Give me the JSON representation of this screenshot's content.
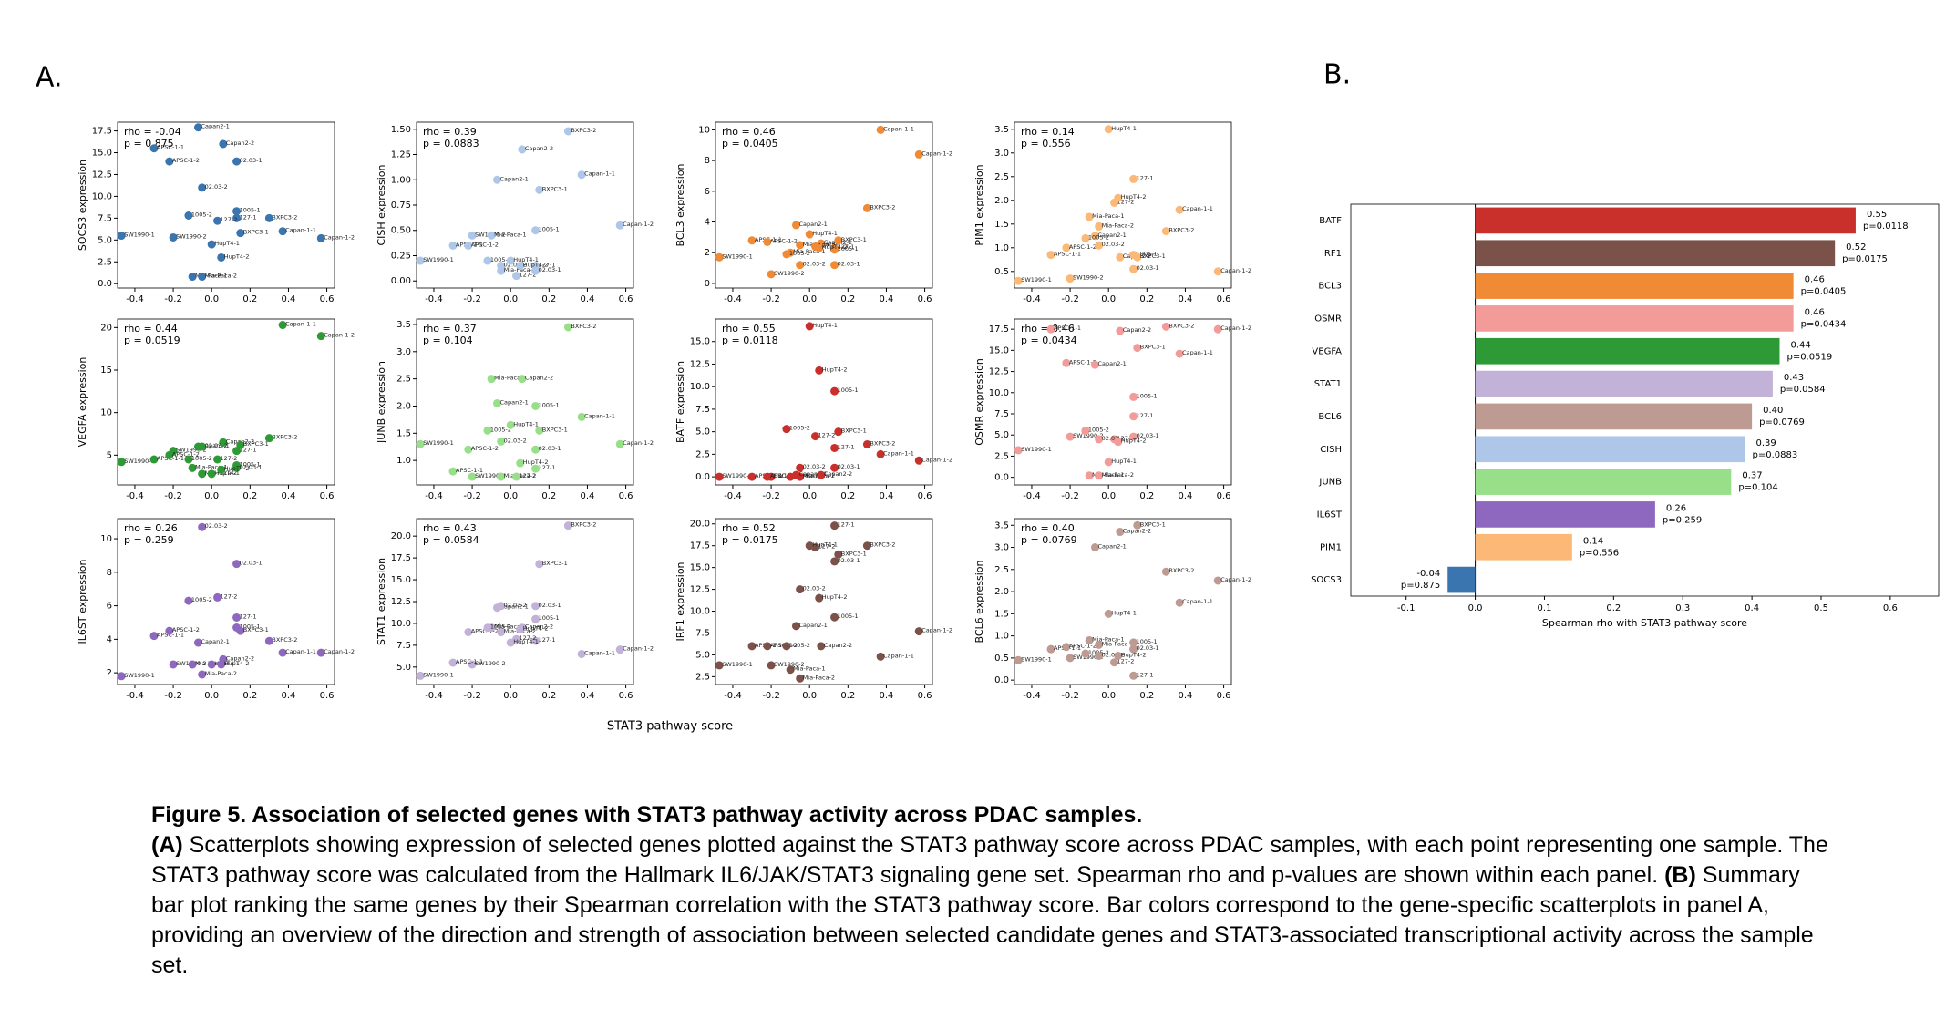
{
  "panel_labels": [
    "A.",
    "B."
  ],
  "chart_data": [
    {
      "type": "scatter",
      "xlabel": "STAT3 pathway score",
      "xlim": [
        -0.49,
        0.64
      ],
      "xticks": [
        -0.4,
        -0.2,
        {
          "value": 0,
          "label": "0.0"
        },
        0.2,
        0.4,
        0.6
      ],
      "x": [
        -0.47,
        -0.2,
        -0.3,
        -0.22,
        -0.1,
        -0.05,
        -0.07,
        0.06,
        0.13,
        -0.12,
        0.13,
        0.03,
        0.13,
        -0.05,
        0.0,
        0.05,
        0.15,
        0.3,
        0.37,
        0.57
      ],
      "point_labels": [
        "SW1990-1",
        "SW1990-2",
        "APSC-1-1",
        "APSC-1-2",
        "Mia-Paca-1",
        "Mia-Paca-2",
        "Capan2-1",
        "Capan2-2",
        "1005-1",
        "1005-2",
        "127-1",
        "127-2",
        "02.03-1",
        "02.03-2",
        "HupT4-1",
        "HupT4-2",
        "BXPC3-1",
        "BXPC3-2",
        "Capan-1-1",
        "Capan-1-2"
      ],
      "panels": [
        {
          "ylabel": "SOCS3 expression",
          "color": "#3a75b0",
          "annotation": [
            "rho = -0.04",
            "p = 0.875"
          ],
          "ylim": [
            -0.5,
            18.5
          ],
          "yticks": [
            {
              "value": 0,
              "label": "0.0"
            },
            2.5,
            {
              "value": 5,
              "label": "5.0"
            },
            7.5,
            {
              "value": 10,
              "label": "10.0"
            },
            12.5,
            {
              "value": 15,
              "label": "15.0"
            },
            17.5
          ],
          "values": [
            5.5,
            5.3,
            15.5,
            14,
            0.8,
            0.8,
            17.9,
            16,
            8.3,
            7.8,
            7.5,
            7.2,
            14,
            11,
            4.5,
            3,
            5.8,
            7.5,
            6,
            5.2
          ]
        },
        {
          "ylabel": "CISH expression",
          "color": "#aec7e8",
          "annotation": [
            "rho = 0.39",
            "p = 0.0883"
          ],
          "ylim": [
            -0.07,
            1.57
          ],
          "yticks": [
            {
              "value": 0,
              "label": "0.00"
            },
            0.25,
            {
              "value": 0.5,
              "label": "0.50"
            },
            0.75,
            {
              "value": 1,
              "label": "1.00"
            },
            1.25,
            {
              "value": 1.5,
              "label": "1.50"
            }
          ],
          "values": [
            0.2,
            0.45,
            0.35,
            0.35,
            0.45,
            0.1,
            1.0,
            1.3,
            0.5,
            0.2,
            0.15,
            0.05,
            0.1,
            0.15,
            0.2,
            0.15,
            0.9,
            1.48,
            1.05,
            0.55
          ]
        },
        {
          "ylabel": "BCL3 expression",
          "color": "#f08a35",
          "annotation": [
            "rho = 0.46",
            "p = 0.0405"
          ],
          "ylim": [
            -0.3,
            10.5
          ],
          "yticks": [
            0,
            2,
            4,
            6,
            8,
            10
          ],
          "values": [
            1.7,
            0.6,
            2.8,
            2.7,
            2.0,
            2.5,
            3.8,
            2.6,
            2.2,
            1.9,
            2.3,
            2.4,
            1.2,
            1.2,
            3.2,
            2.3,
            2.8,
            4.9,
            10,
            8.4
          ]
        },
        {
          "ylabel": "PIM1 expression",
          "color": "#fbb877",
          "annotation": [
            "rho = 0.14",
            "p = 0.556"
          ],
          "ylim": [
            0.15,
            3.65
          ],
          "yticks": [
            0.5,
            {
              "value": 1,
              "label": "1.0"
            },
            1.5,
            {
              "value": 2,
              "label": "2.0"
            },
            2.5,
            {
              "value": 3,
              "label": "3.0"
            },
            3.5
          ],
          "values": [
            0.3,
            0.35,
            0.85,
            1.0,
            1.65,
            1.45,
            1.25,
            0.8,
            0.85,
            1.2,
            2.45,
            1.95,
            0.55,
            1.05,
            3.5,
            2.05,
            0.8,
            1.35,
            1.8,
            0.5
          ]
        },
        {
          "ylabel": "VEGFA expression",
          "color": "#2e9a35",
          "annotation": [
            "rho = 0.44",
            "p = 0.0519"
          ],
          "ylim": [
            1.5,
            21
          ],
          "yticks": [
            5,
            10,
            15,
            20
          ],
          "values": [
            4.2,
            5.5,
            4.5,
            5,
            3.5,
            2.8,
            6,
            6.5,
            3.8,
            4.5,
            5.5,
            4.5,
            3.5,
            6,
            2.8,
            3.3,
            6.2,
            7.0,
            20.3,
            19
          ]
        },
        {
          "ylabel": "JUNB expression",
          "color": "#98df8a",
          "annotation": [
            "rho = 0.37",
            "p = 0.104"
          ],
          "ylim": [
            0.55,
            3.6
          ],
          "yticks": [
            {
              "value": 1,
              "label": "1.0"
            },
            1.5,
            {
              "value": 2,
              "label": "2.0"
            },
            2.5,
            {
              "value": 3,
              "label": "3.0"
            },
            3.5
          ],
          "values": [
            1.3,
            0.7,
            0.8,
            1.2,
            2.5,
            0.7,
            2.05,
            2.5,
            2.0,
            1.55,
            0.85,
            0.7,
            1.2,
            1.35,
            1.65,
            0.95,
            1.55,
            3.45,
            1.8,
            1.3
          ]
        },
        {
          "ylabel": "BATF expression",
          "color": "#c9302c",
          "annotation": [
            "rho = 0.55",
            "p = 0.0118"
          ],
          "ylim": [
            -0.9,
            17.5
          ],
          "yticks": [
            {
              "value": 0,
              "label": "0.0"
            },
            2.5,
            {
              "value": 5,
              "label": "5.0"
            },
            7.5,
            {
              "value": 10,
              "label": "10.0"
            },
            12.5,
            {
              "value": 15,
              "label": "15.0"
            }
          ],
          "values": [
            0,
            0,
            0,
            0,
            0,
            0,
            0.2,
            0.2,
            9.5,
            5.3,
            3.2,
            4.5,
            1.0,
            1.0,
            16.7,
            11.8,
            5,
            3.6,
            2.5,
            1.8
          ]
        },
        {
          "ylabel": "OSMR expression",
          "color": "#f29b98",
          "annotation": [
            "rho = 0.46",
            "p = 0.0434"
          ],
          "ylim": [
            -0.9,
            18.7
          ],
          "yticks": [
            {
              "value": 0,
              "label": "0.0"
            },
            2.5,
            {
              "value": 5,
              "label": "5.0"
            },
            7.5,
            {
              "value": 10,
              "label": "10.0"
            },
            12.5,
            {
              "value": 15,
              "label": "15.0"
            },
            17.5
          ],
          "values": [
            3.2,
            4.8,
            17.5,
            13.5,
            0.2,
            0.2,
            13.3,
            17.3,
            9.5,
            5.5,
            7.2,
            4.5,
            4.8,
            4.5,
            1.8,
            4.2,
            15.3,
            17.8,
            14.6,
            17.5
          ]
        },
        {
          "ylabel": "IL6ST expression",
          "color": "#8e68be",
          "annotation": [
            "rho = 0.26",
            "p = 0.259"
          ],
          "ylim": [
            1.3,
            11.2
          ],
          "yticks": [
            2,
            4,
            6,
            8,
            10
          ],
          "values": [
            1.8,
            2.5,
            4.2,
            4.5,
            2.5,
            1.9,
            3.8,
            2.8,
            4.7,
            6.3,
            5.3,
            6.5,
            8.5,
            10.7,
            2.5,
            2.5,
            4.5,
            3.9,
            3.2,
            3.2
          ]
        },
        {
          "ylabel": "STAT1 expression",
          "color": "#c2b2d8",
          "annotation": [
            "rho = 0.43",
            "p = 0.0584"
          ],
          "ylim": [
            3,
            22
          ],
          "yticks": [
            {
              "value": 5,
              "label": "5.0"
            },
            7.5,
            {
              "value": 10,
              "label": "10.0"
            },
            12.5,
            {
              "value": 15,
              "label": "15.0"
            },
            17.5,
            {
              "value": 20,
              "label": "20.0"
            }
          ],
          "values": [
            4,
            5.3,
            5.5,
            9.0,
            9.5,
            9.0,
            11.8,
            9.5,
            10.5,
            9.5,
            8.0,
            8.2,
            12,
            12,
            7.8,
            9.3,
            16.8,
            21.2,
            6.5,
            7.0
          ]
        },
        {
          "ylabel": "IRF1 expression",
          "color": "#7a5249",
          "annotation": [
            "rho = 0.52",
            "p = 0.0175"
          ],
          "ylim": [
            1.6,
            20.6
          ],
          "yticks": [
            2.5,
            {
              "value": 5,
              "label": "5.0"
            },
            7.5,
            {
              "value": 10,
              "label": "10.0"
            },
            12.5,
            {
              "value": 15,
              "label": "15.0"
            },
            17.5,
            {
              "value": 20,
              "label": "20.0"
            }
          ],
          "values": [
            3.8,
            3.8,
            6.0,
            6.0,
            3.3,
            2.3,
            8.3,
            6.0,
            9.3,
            6.0,
            19.8,
            17.3,
            15.7,
            12.5,
            17.5,
            11.5,
            16.5,
            17.5,
            4.8,
            7.7
          ]
        },
        {
          "ylabel": "BCL6 expression",
          "color": "#bd9b93",
          "annotation": [
            "rho = 0.40",
            "p = 0.0769"
          ],
          "ylim": [
            -0.1,
            3.65
          ],
          "yticks": [
            {
              "value": 0,
              "label": "0.0"
            },
            0.5,
            {
              "value": 1,
              "label": "1.0"
            },
            1.5,
            {
              "value": 2,
              "label": "2.0"
            },
            2.5,
            {
              "value": 3,
              "label": "3.0"
            },
            3.5
          ],
          "values": [
            0.45,
            0.5,
            0.7,
            0.75,
            0.9,
            0.8,
            3.0,
            3.35,
            0.85,
            0.6,
            0.1,
            0.4,
            0.7,
            0.55,
            1.5,
            0.55,
            3.5,
            2.45,
            1.75,
            2.25
          ]
        }
      ]
    },
    {
      "type": "bar",
      "xlabel": "Spearman rho with STAT3 pathway score",
      "xlim": [
        -0.18,
        0.67
      ],
      "xticks": [
        -0.1,
        {
          "value": 0,
          "label": "0.0"
        },
        0.1,
        0.2,
        0.3,
        0.4,
        0.5,
        0.6
      ],
      "categories": [
        "BATF",
        "IRF1",
        "BCL3",
        "OSMR",
        "VEGFA",
        "STAT1",
        "BCL6",
        "CISH",
        "JUNB",
        "IL6ST",
        "PIM1",
        "SOCS3"
      ],
      "values": [
        0.55,
        0.52,
        0.46,
        0.46,
        0.44,
        0.43,
        0.4,
        0.39,
        0.37,
        0.26,
        0.14,
        -0.04
      ],
      "value_labels": [
        "0.55",
        "0.52",
        "0.46",
        "0.46",
        "0.44",
        "0.43",
        "0.40",
        "0.39",
        "0.37",
        "0.26",
        "0.14",
        "-0.04"
      ],
      "p_labels": [
        "p=0.0118",
        "p=0.0175",
        "p=0.0405",
        "p=0.0434",
        "p=0.0519",
        "p=0.0584",
        "p=0.0769",
        "p=0.0883",
        "p=0.104",
        "p=0.259",
        "p=0.556",
        "p=0.875"
      ],
      "colors": [
        "#c9302c",
        "#7a5249",
        "#f08a35",
        "#f29b98",
        "#2e9a35",
        "#c2b2d8",
        "#bd9b93",
        "#aec7e8",
        "#98df8a",
        "#8e68be",
        "#fbb877",
        "#3a75b0"
      ]
    }
  ],
  "caption": {
    "title": "Figure 5. Association of selected genes with STAT3 pathway activity across PDAC samples.",
    "a_label": "(A)",
    "a_text": "Scatterplots showing expression of selected genes plotted against the STAT3 pathway score across PDAC samples, with each point representing one sample. The STAT3 pathway score was calculated from the Hallmark IL6/JAK/STAT3 signaling gene set. Spearman rho and p-values are shown within each panel.",
    "b_label": "(B)",
    "b_text": "Summary bar plot ranking the same genes by their Spearman correlation with the STAT3 pathway score. Bar colors correspond to the gene-specific scatterplots in panel A, providing an overview of the direction and strength of association between selected candidate genes and STAT3-associated transcriptional activity across the sample set."
  }
}
